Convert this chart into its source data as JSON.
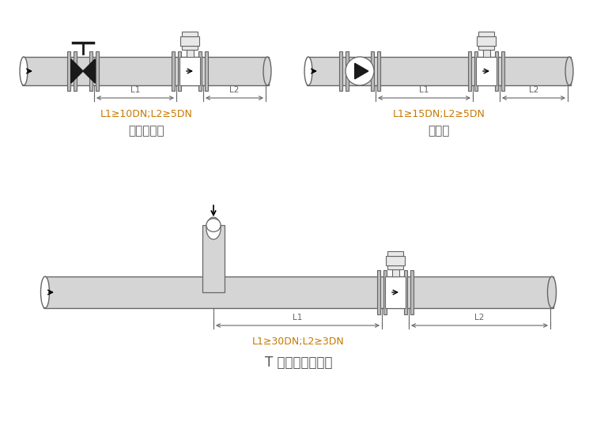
{
  "bg_color": "#ffffff",
  "line_color": "#555555",
  "dim_color": "#c87800",
  "text_color": "#333333",
  "label1": "L1≥10DN;L2≥5DN",
  "label2": "L1≥15DN;L2≥5DN",
  "label3": "L1≥30DN;L2≥3DN",
  "caption1": "截止阀下游",
  "caption2": "泵下游",
  "caption3": "T 形三通、混合流",
  "pipe_gray": "#d5d5d5",
  "pipe_edge": "#666666",
  "flange_gray": "#bbbbbb",
  "meter_fill": "#e8e8e8",
  "valve_black": "#1a1a1a",
  "dim_line_color": "#666666"
}
